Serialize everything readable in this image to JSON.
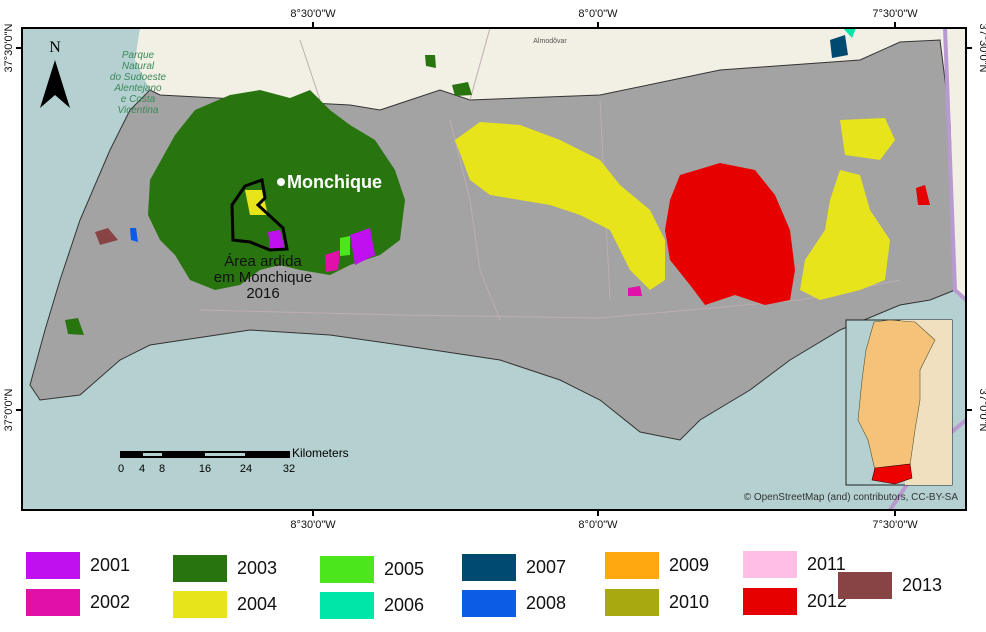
{
  "map": {
    "north_label": "N",
    "places": {
      "park": [
        "Parque",
        "Natural",
        "do Sudoeste",
        "Alentejano",
        "e Costa",
        "Vicentina"
      ],
      "town": "Monchique",
      "almodovar": "Almodôvar",
      "burned_area": [
        "Área ardida",
        "em Monchique",
        "2016"
      ]
    },
    "graticule": {
      "top": [
        "8°30'0\"W",
        "8°0'0\"W",
        "7°30'0\"W"
      ],
      "bottom": [
        "8°30'0\"W",
        "8°0'0\"W",
        "7°30'0\"W"
      ],
      "left": [
        "37°30'0\"N",
        "37°0'0\"N"
      ],
      "right": [
        "37°30'0\"N",
        "37°0'0\"N"
      ]
    },
    "scale_bar": {
      "unit": "Kilometers",
      "ticks": [
        "0",
        "4",
        "8",
        "16",
        "24",
        "32"
      ]
    },
    "attribution": "© OpenStreetMap (and) contributors, CC-BY-SA",
    "colors": {
      "sea": "#b5d0d0",
      "land_outside": "#f2efe4",
      "algarve": "#a3a3a3",
      "inset_portugal": "#f5c27a",
      "inset_algarve": "#ee0000"
    }
  },
  "legend": [
    {
      "year": "2001",
      "color": "#c010f0"
    },
    {
      "year": "2002",
      "color": "#e010a8"
    },
    {
      "year": "2003",
      "color": "#287510"
    },
    {
      "year": "2004",
      "color": "#e8e41c"
    },
    {
      "year": "2005",
      "color": "#4ce61c"
    },
    {
      "year": "2006",
      "color": "#00e6a8"
    },
    {
      "year": "2007",
      "color": "#004a70"
    },
    {
      "year": "2008",
      "color": "#0c5ce6"
    },
    {
      "year": "2009",
      "color": "#ffa810"
    },
    {
      "year": "2010",
      "color": "#a8a810"
    },
    {
      "year": "2011",
      "color": "#ffbee6"
    },
    {
      "year": "2012",
      "color": "#e60000"
    },
    {
      "year": "2013",
      "color": "#884444"
    }
  ]
}
